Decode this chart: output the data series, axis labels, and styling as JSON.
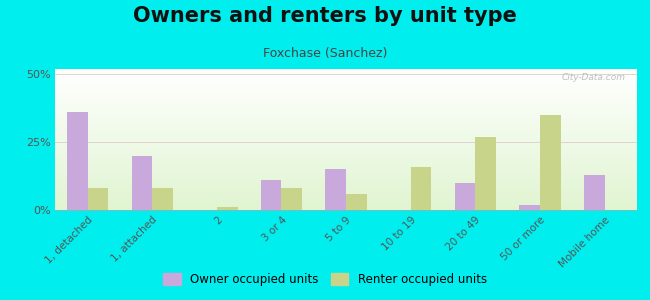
{
  "title": "Owners and renters by unit type",
  "subtitle": "Foxchase (Sanchez)",
  "categories": [
    "1, detached",
    "1, attached",
    "2",
    "3 or 4",
    "5 to 9",
    "10 to 19",
    "20 to 49",
    "50 or more",
    "Mobile home"
  ],
  "owner_values": [
    36,
    20,
    0,
    11,
    15,
    0,
    10,
    2,
    13
  ],
  "renter_values": [
    8,
    8,
    1,
    8,
    6,
    16,
    27,
    35,
    0
  ],
  "owner_color": "#c9a8dc",
  "renter_color": "#c8d48a",
  "bg_color": "#00eeee",
  "ylim": [
    0,
    52
  ],
  "yticks": [
    0,
    25,
    50
  ],
  "ytick_labels": [
    "0%",
    "25%",
    "50%"
  ],
  "bar_width": 0.32,
  "legend_owner": "Owner occupied units",
  "legend_renter": "Renter occupied units",
  "watermark": "City-Data.com",
  "title_fontsize": 15,
  "subtitle_fontsize": 9,
  "axis_fontsize": 7.5
}
